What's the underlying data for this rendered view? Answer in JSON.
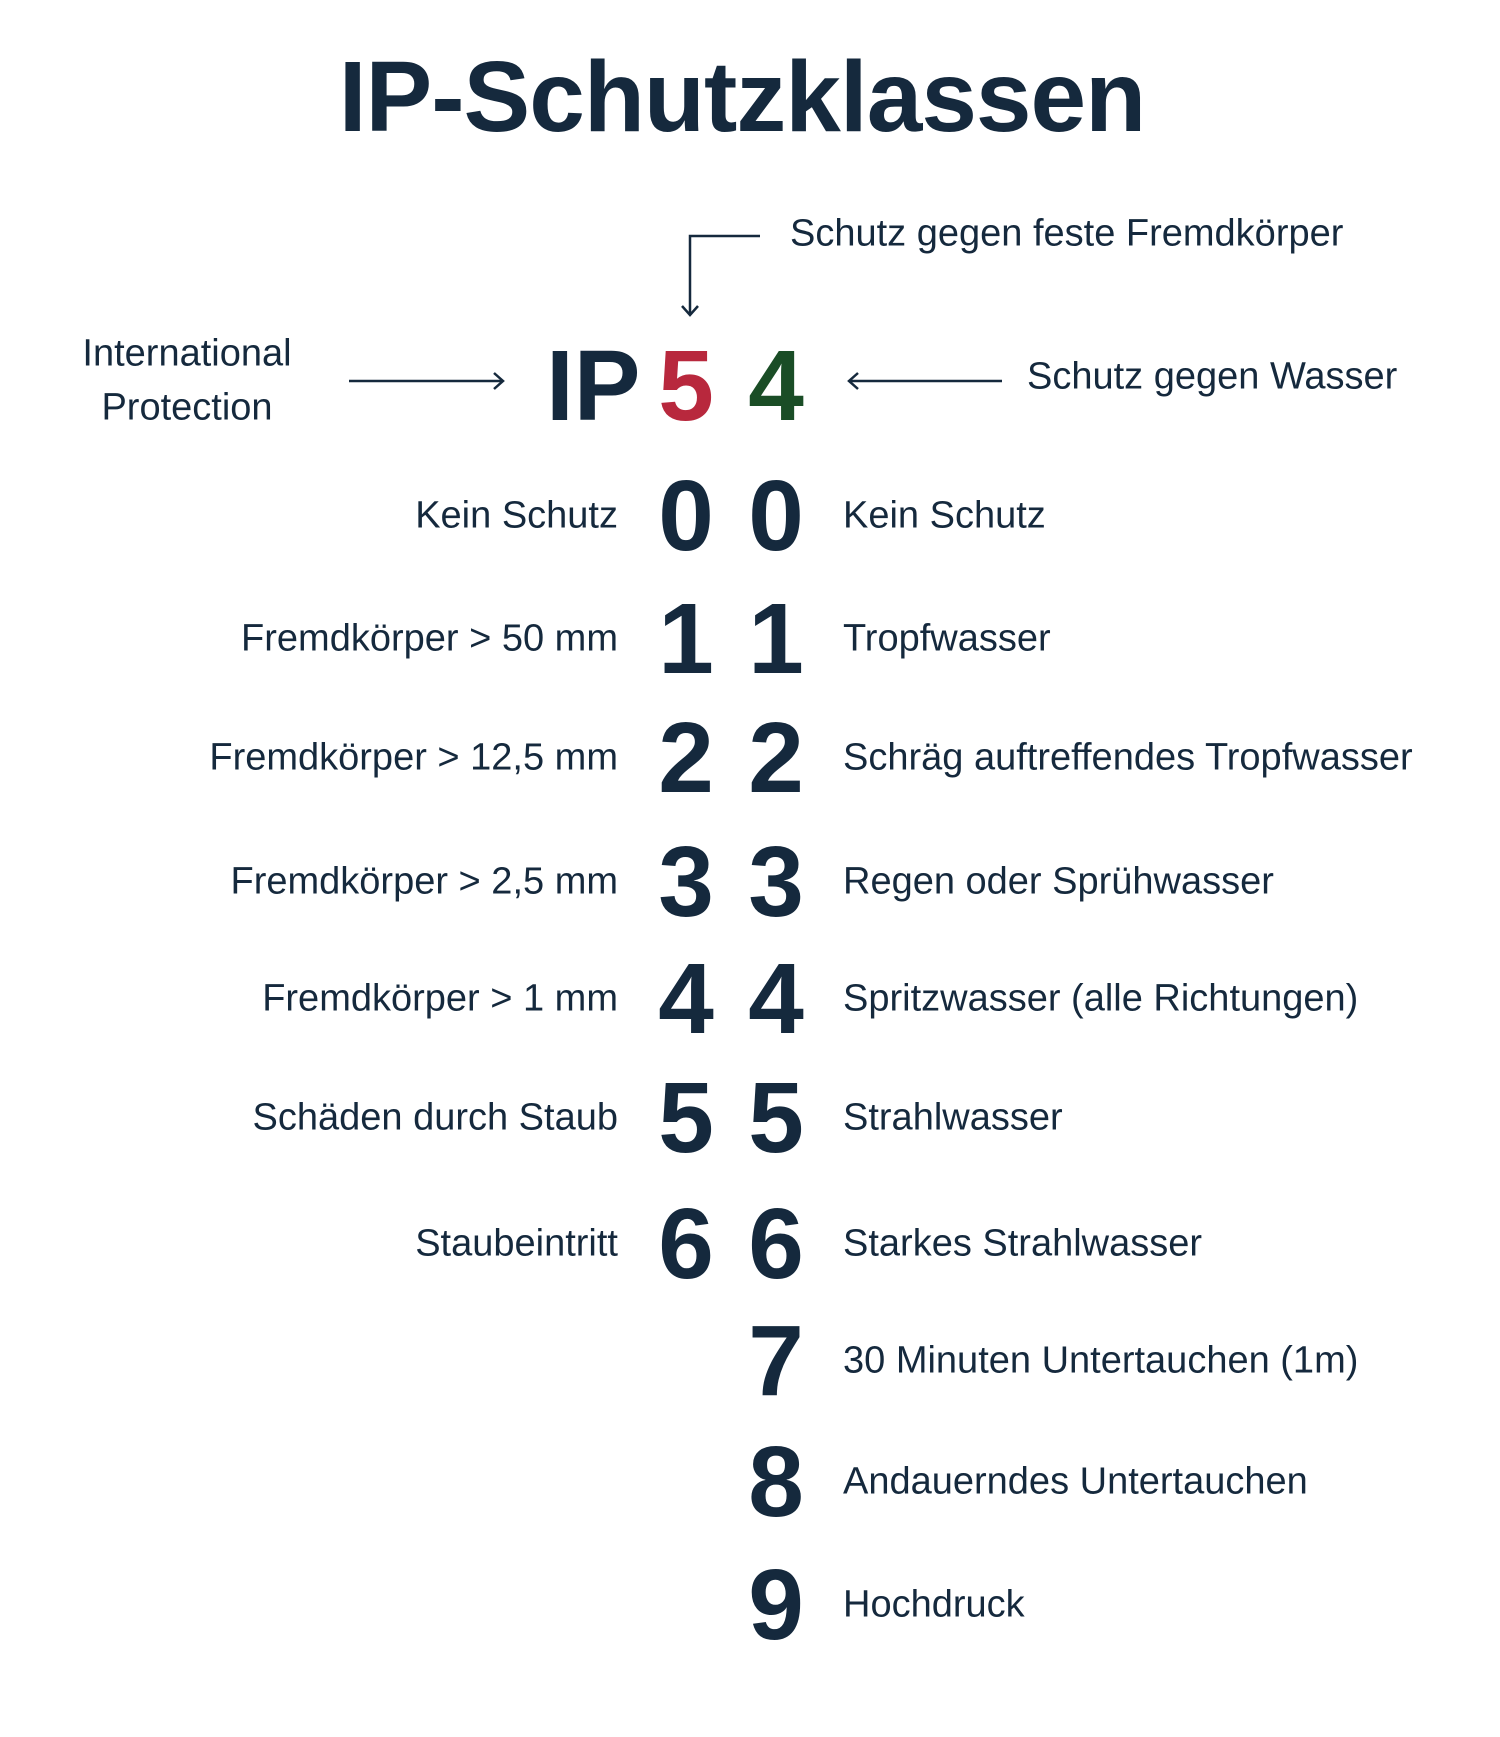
{
  "title": "IP-Schutzklassen",
  "colors": {
    "text": "#15293d",
    "first_digit": "#b8283d",
    "second_digit": "#1a4d26"
  },
  "header": {
    "ip_prefix": "IP",
    "example_first_digit": "5",
    "example_second_digit": "4",
    "left_label_line1": "International",
    "left_label_line2": "Protection",
    "first_digit_label": "Schutz gegen feste Fremdkörper",
    "second_digit_label": "Schutz gegen Wasser"
  },
  "first_digit_rows": [
    {
      "digit": "0",
      "label": "Kein Schutz"
    },
    {
      "digit": "1",
      "label": "Fremdkörper > 50 mm"
    },
    {
      "digit": "2",
      "label": "Fremdkörper > 12,5 mm"
    },
    {
      "digit": "3",
      "label": "Fremdkörper > 2,5 mm"
    },
    {
      "digit": "4",
      "label": "Fremdkörper > 1 mm"
    },
    {
      "digit": "5",
      "label": "Schäden durch Staub"
    },
    {
      "digit": "6",
      "label": "Staubeintritt"
    }
  ],
  "second_digit_rows": [
    {
      "digit": "0",
      "label": "Kein Schutz"
    },
    {
      "digit": "1",
      "label": "Tropfwasser"
    },
    {
      "digit": "2",
      "label": "Schräg auftreffendes Tropfwasser"
    },
    {
      "digit": "3",
      "label": "Regen oder Sprühwasser"
    },
    {
      "digit": "4",
      "label": "Spritzwasser (alle Richtungen)"
    },
    {
      "digit": "5",
      "label": "Strahlwasser"
    },
    {
      "digit": "6",
      "label": "Starkes Strahlwasser"
    },
    {
      "digit": "7",
      "label": "30 Minuten Untertauchen (1m)"
    },
    {
      "digit": "8",
      "label": "Andauerndes Untertauchen"
    },
    {
      "digit": "9",
      "label": "Hochdruck"
    }
  ]
}
